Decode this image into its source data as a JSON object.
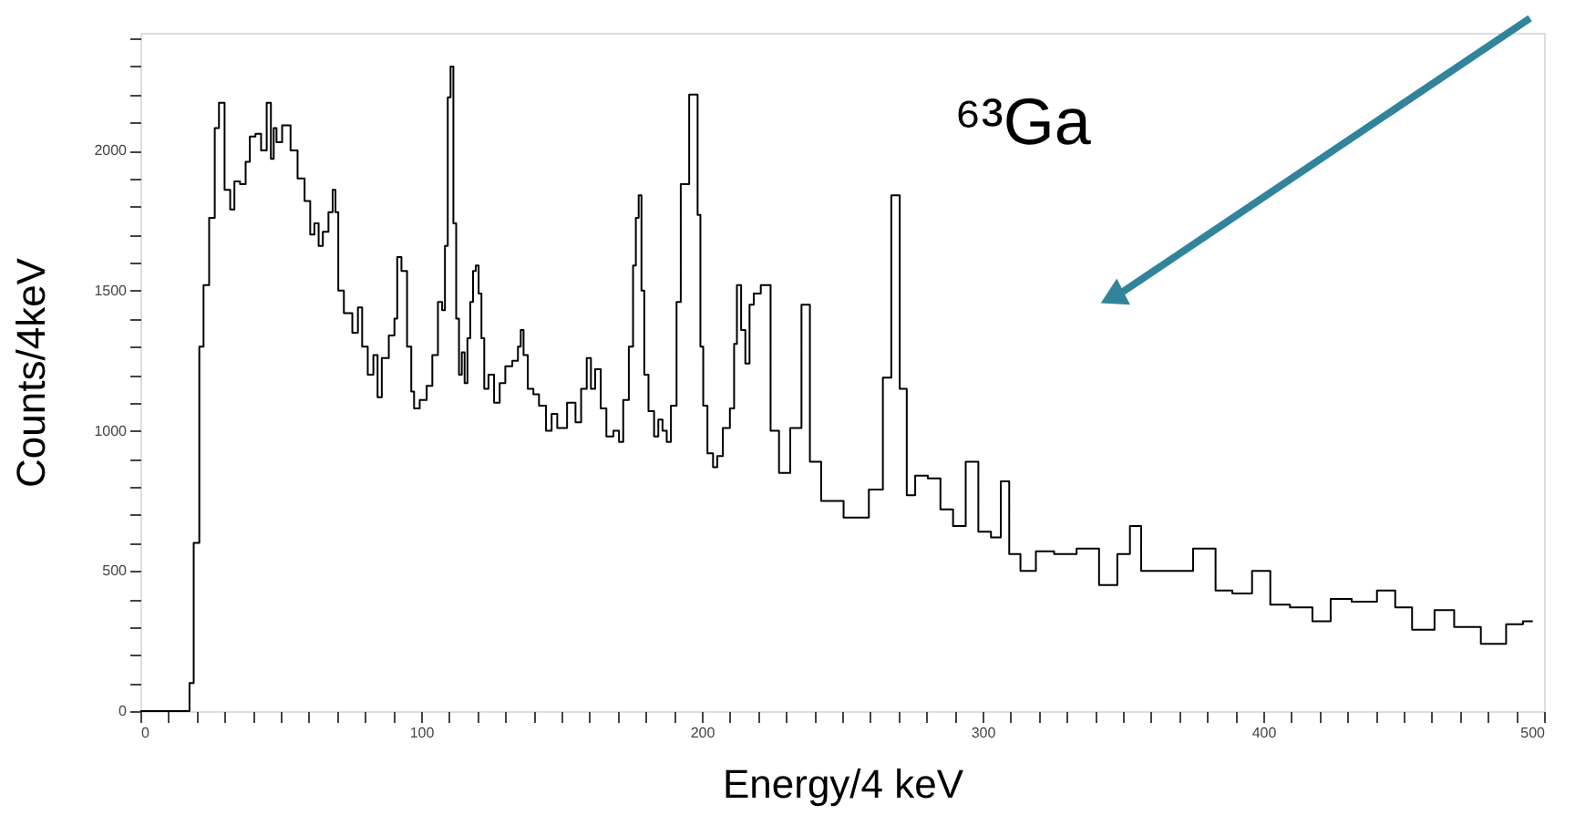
{
  "chart_data": {
    "type": "step",
    "xlabel": "Energy/4 keV",
    "ylabel": "Counts/4keV",
    "annotations": [
      "⁶³Ga"
    ],
    "x": [
      0,
      10,
      17,
      18,
      20,
      22,
      23,
      26,
      27,
      29,
      31,
      33,
      34,
      37,
      38,
      40,
      42,
      44,
      46,
      47,
      48,
      49,
      52,
      55,
      57,
      60,
      61,
      63,
      64,
      66,
      68,
      69,
      70,
      71,
      74,
      77,
      78,
      80,
      82,
      84,
      85,
      87,
      90,
      91,
      92,
      94,
      96,
      97,
      98,
      101,
      103,
      105,
      107,
      108,
      109,
      110,
      111,
      112,
      113,
      114,
      115,
      116,
      117,
      118,
      119,
      120,
      121,
      122,
      123,
      125,
      127,
      129,
      131,
      134,
      135,
      136,
      137,
      139,
      141,
      143,
      146,
      147,
      150,
      154,
      156,
      158,
      160,
      161,
      163,
      165,
      167,
      170,
      171,
      173,
      175,
      176,
      177,
      178,
      179,
      180,
      182,
      184,
      185,
      187,
      188,
      190,
      192,
      193,
      198,
      199,
      200,
      201,
      203,
      205,
      206,
      209,
      211,
      212,
      213,
      215,
      216,
      218,
      219,
      223,
      226,
      229,
      234,
      237,
      240,
      245,
      256,
      263,
      266,
      269,
      272,
      274,
      278,
      283,
      287,
      292,
      296,
      301,
      305,
      308,
      311,
      316,
      322,
      329,
      338,
      345,
      351,
      354,
      359,
      370,
      380,
      386,
      392,
      400,
      405,
      414,
      421,
      427,
      436,
      445,
      449,
      457,
      465,
      471,
      484,
      489,
      496
    ],
    "values": [
      0,
      0,
      0,
      100,
      600,
      1300,
      1520,
      1760,
      2080,
      2170,
      1860,
      1790,
      1890,
      1880,
      1960,
      2050,
      2060,
      2000,
      2170,
      1970,
      2080,
      2030,
      2090,
      2000,
      1900,
      1820,
      1700,
      1740,
      1660,
      1710,
      1780,
      1860,
      1780,
      1500,
      1420,
      1350,
      1440,
      1300,
      1200,
      1270,
      1120,
      1260,
      1340,
      1400,
      1620,
      1570,
      1300,
      1140,
      1080,
      1110,
      1160,
      1270,
      1460,
      1430,
      1660,
      2190,
      2300,
      1740,
      1400,
      1200,
      1280,
      1170,
      1330,
      1460,
      1570,
      1590,
      1490,
      1330,
      1150,
      1200,
      1100,
      1170,
      1230,
      1250,
      1300,
      1360,
      1270,
      1150,
      1130,
      1090,
      1000,
      1060,
      1010,
      1100,
      1030,
      1150,
      1260,
      1150,
      1220,
      1080,
      980,
      1000,
      960,
      1110,
      1300,
      1590,
      1760,
      1840,
      1500,
      1200,
      1070,
      980,
      1040,
      1000,
      960,
      1090,
      1460,
      1880,
      2200,
      1770,
      1300,
      1090,
      920,
      870,
      910,
      1010,
      1080,
      1310,
      1520,
      1360,
      1240,
      1450,
      1490,
      1520,
      1000,
      850,
      1010,
      1450,
      890,
      750,
      690,
      790,
      1190,
      1840,
      1150,
      770,
      840,
      830,
      720,
      660,
      890,
      640,
      620,
      820,
      560,
      500,
      570,
      560,
      580,
      450,
      560,
      660,
      500,
      500,
      580,
      430,
      420,
      500,
      380,
      370,
      320,
      400,
      390,
      430,
      370,
      290,
      360,
      300,
      240,
      310,
      320
    ],
    "color": "#000000",
    "xlim": [
      0,
      500
    ],
    "xticks": [
      0,
      {
        "value": 10,
        "label": null
      },
      {
        "value": 20,
        "label": null
      },
      {
        "value": 30,
        "label": null
      },
      {
        "value": 40,
        "label": null
      },
      {
        "value": 50,
        "label": null
      },
      {
        "value": 60,
        "label": null
      },
      {
        "value": 70,
        "label": null
      },
      {
        "value": 80,
        "label": null
      },
      {
        "value": 90,
        "label": null
      },
      100,
      {
        "value": 110,
        "label": null
      },
      {
        "value": 120,
        "label": null
      },
      {
        "value": 130,
        "label": null
      },
      {
        "value": 140,
        "label": null
      },
      {
        "value": 150,
        "label": null
      },
      {
        "value": 160,
        "label": null
      },
      {
        "value": 170,
        "label": null
      },
      {
        "value": 180,
        "label": null
      },
      {
        "value": 190,
        "label": null
      },
      200,
      {
        "value": 210,
        "label": null
      },
      {
        "value": 220,
        "label": null
      },
      {
        "value": 230,
        "label": null
      },
      {
        "value": 240,
        "label": null
      },
      {
        "value": 250,
        "label": null
      },
      {
        "value": 260,
        "label": null
      },
      {
        "value": 270,
        "label": null
      },
      {
        "value": 280,
        "label": null
      },
      {
        "value": 290,
        "label": null
      },
      300,
      {
        "value": 310,
        "label": null
      },
      {
        "value": 320,
        "label": null
      },
      {
        "value": 330,
        "label": null
      },
      {
        "value": 340,
        "label": null
      },
      {
        "value": 350,
        "label": null
      },
      {
        "value": 360,
        "label": null
      },
      {
        "value": 370,
        "label": null
      },
      {
        "value": 380,
        "label": null
      },
      {
        "value": 390,
        "label": null
      },
      400,
      {
        "value": 410,
        "label": null
      },
      {
        "value": 420,
        "label": null
      },
      {
        "value": 430,
        "label": null
      },
      {
        "value": 440,
        "label": null
      },
      {
        "value": 450,
        "label": null
      },
      {
        "value": 460,
        "label": null
      },
      {
        "value": 470,
        "label": null
      },
      {
        "value": 480,
        "label": null
      },
      {
        "value": 490,
        "label": null
      },
      500
    ],
    "ylim": [
      0,
      2420
    ],
    "yticks": [
      0,
      {
        "value": 100,
        "label": null
      },
      {
        "value": 200,
        "label": null
      },
      {
        "value": 300,
        "label": null
      },
      {
        "value": 400,
        "label": null
      },
      500,
      {
        "value": 600,
        "label": null
      },
      {
        "value": 700,
        "label": null
      },
      {
        "value": 800,
        "label": null
      },
      {
        "value": 900,
        "label": null
      },
      1000,
      {
        "value": 1100,
        "label": null
      },
      {
        "value": 1200,
        "label": null
      },
      {
        "value": 1300,
        "label": null
      },
      {
        "value": 1400,
        "label": null
      },
      1500,
      {
        "value": 1600,
        "label": null
      },
      {
        "value": 1700,
        "label": null
      },
      {
        "value": 1800,
        "label": null
      },
      {
        "value": 1900,
        "label": null
      },
      2000,
      {
        "value": 2100,
        "label": null
      },
      {
        "value": 2200,
        "label": null
      },
      {
        "value": 2300,
        "label": null
      },
      {
        "value": 2400,
        "label": null
      }
    ],
    "grid": false
  }
}
